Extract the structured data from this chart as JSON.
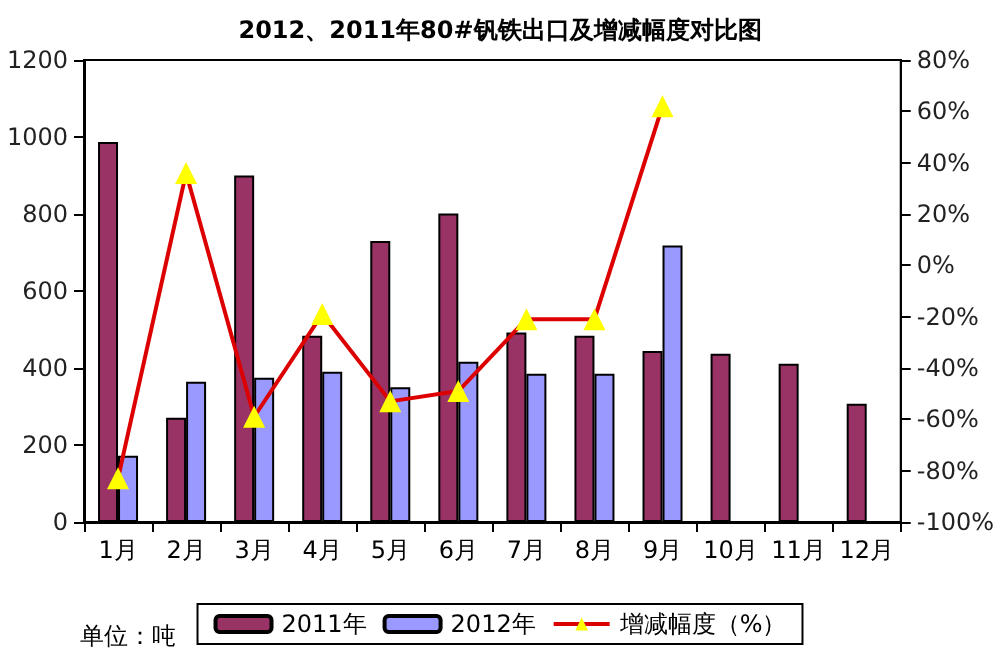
{
  "chart_data": {
    "type": "bar",
    "title": "2012、2011年80#钒铁出口及增减幅度对比图",
    "categories": [
      "1月",
      "2月",
      "3月",
      "4月",
      "5月",
      "6月",
      "7月",
      "8月",
      "9月",
      "10月",
      "11月",
      "12月"
    ],
    "series": [
      {
        "name": "2011年",
        "color": "#993366",
        "values": [
          987,
          271,
          900,
          484,
          730,
          801,
          492,
          484,
          444,
          437,
          411,
          307
        ]
      },
      {
        "name": "2012年",
        "color": "#9999ff",
        "values": [
          172,
          364,
          375,
          390,
          350,
          416,
          385,
          385,
          718,
          null,
          null,
          null
        ]
      },
      {
        "name": "增减幅度（%）",
        "type": "line",
        "axis": "y2",
        "color": "#dd0000",
        "marker": "triangle",
        "values": [
          -83,
          36,
          -59,
          -19,
          -53,
          -49,
          -21,
          -21,
          62,
          null,
          null,
          null
        ]
      }
    ],
    "ylim": [
      0,
      1200
    ],
    "yticks": [
      0,
      200,
      400,
      600,
      800,
      1000,
      1200
    ],
    "y2lim": [
      -100,
      80
    ],
    "y2ticks": [
      {
        "value": -100,
        "label": "-100%"
      },
      {
        "value": -80,
        "label": "-80%"
      },
      {
        "value": -60,
        "label": "-60%"
      },
      {
        "value": -40,
        "label": "-40%"
      },
      {
        "value": -20,
        "label": "-20%"
      },
      {
        "value": 0,
        "label": "0%"
      },
      {
        "value": 20,
        "label": "20%"
      },
      {
        "value": 40,
        "label": "40%"
      },
      {
        "value": 60,
        "label": "60%"
      },
      {
        "value": 80,
        "label": "80%"
      }
    ],
    "annotations": [
      "单位：吨"
    ],
    "grid": false,
    "legend": "bottom"
  }
}
